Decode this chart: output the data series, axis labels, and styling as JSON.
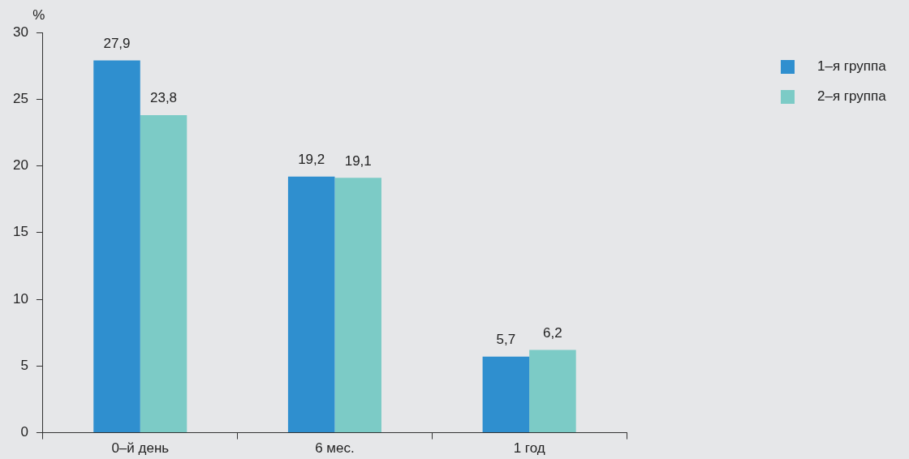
{
  "chart_data": {
    "type": "bar",
    "ylabel": "%",
    "categories": [
      "0–й день",
      "6 мес.",
      "1 год"
    ],
    "series": [
      {
        "name": "1–я группа",
        "color": "#2f8fcf",
        "values": [
          27.9,
          19.2,
          5.7
        ],
        "value_labels": [
          "27,9",
          "19,2",
          "5,7"
        ]
      },
      {
        "name": "2–я группа",
        "color": "#7ccbc6",
        "values": [
          23.8,
          19.1,
          6.2
        ],
        "value_labels": [
          "23,8",
          "19,1",
          "6,2"
        ]
      }
    ],
    "ylim": [
      0,
      30
    ],
    "yticks": [
      0,
      5,
      10,
      15,
      20,
      25,
      30
    ],
    "grid": false,
    "legend": "top right"
  }
}
